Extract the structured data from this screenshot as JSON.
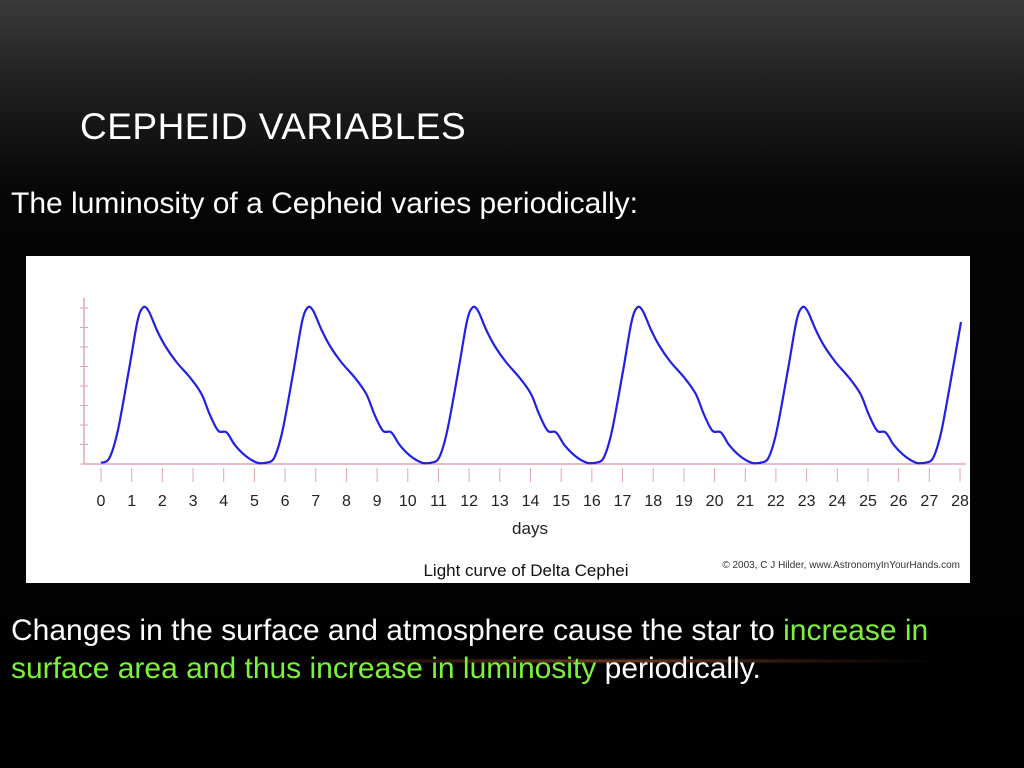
{
  "slide": {
    "title": "CEPHEID VARIABLES",
    "intro": "The luminosity of a Cepheid varies periodically:",
    "body": {
      "part1": "Changes in the surface and atmosphere cause the star to ",
      "highlight": "increase in surface area and thus increase in luminosity",
      "part2": " periodically."
    },
    "highlight_color": "#7cf23c"
  },
  "chart_data": {
    "type": "line",
    "title": "Light curve of Delta Cephei",
    "credit": "© 2003, C J Hilder, www.AstronomyInYourHands.com",
    "xlabel": "days",
    "ylabel": "",
    "xlim": [
      0,
      28
    ],
    "ylim": [
      0,
      1
    ],
    "x_ticks": [
      "0",
      "1",
      "2",
      "3",
      "4",
      "5",
      "6",
      "7",
      "8",
      "9",
      "10",
      "11",
      "12",
      "13",
      "14",
      "15",
      "16",
      "17",
      "18",
      "19",
      "20",
      "21",
      "22",
      "23",
      "24",
      "25",
      "26",
      "27",
      "28"
    ],
    "grid": false,
    "line_color": "#2020e6",
    "axis_color": "#e2a6ae",
    "series": [
      {
        "x": [
          0,
          0.3,
          0.6,
          1.0,
          1.3,
          1.5,
          1.7,
          2.0,
          2.3,
          2.7,
          3.2,
          3.6,
          3.9,
          4.2,
          4.5,
          4.8,
          5.2,
          5.6,
          5.9
        ],
        "y": [
          0.02,
          0.05,
          0.22,
          0.6,
          0.9,
          0.99,
          0.97,
          0.85,
          0.75,
          0.65,
          0.55,
          0.45,
          0.32,
          0.22,
          0.21,
          0.13,
          0.06,
          0.02,
          0.02
        ]
      }
    ],
    "period_days": 5.37
  }
}
